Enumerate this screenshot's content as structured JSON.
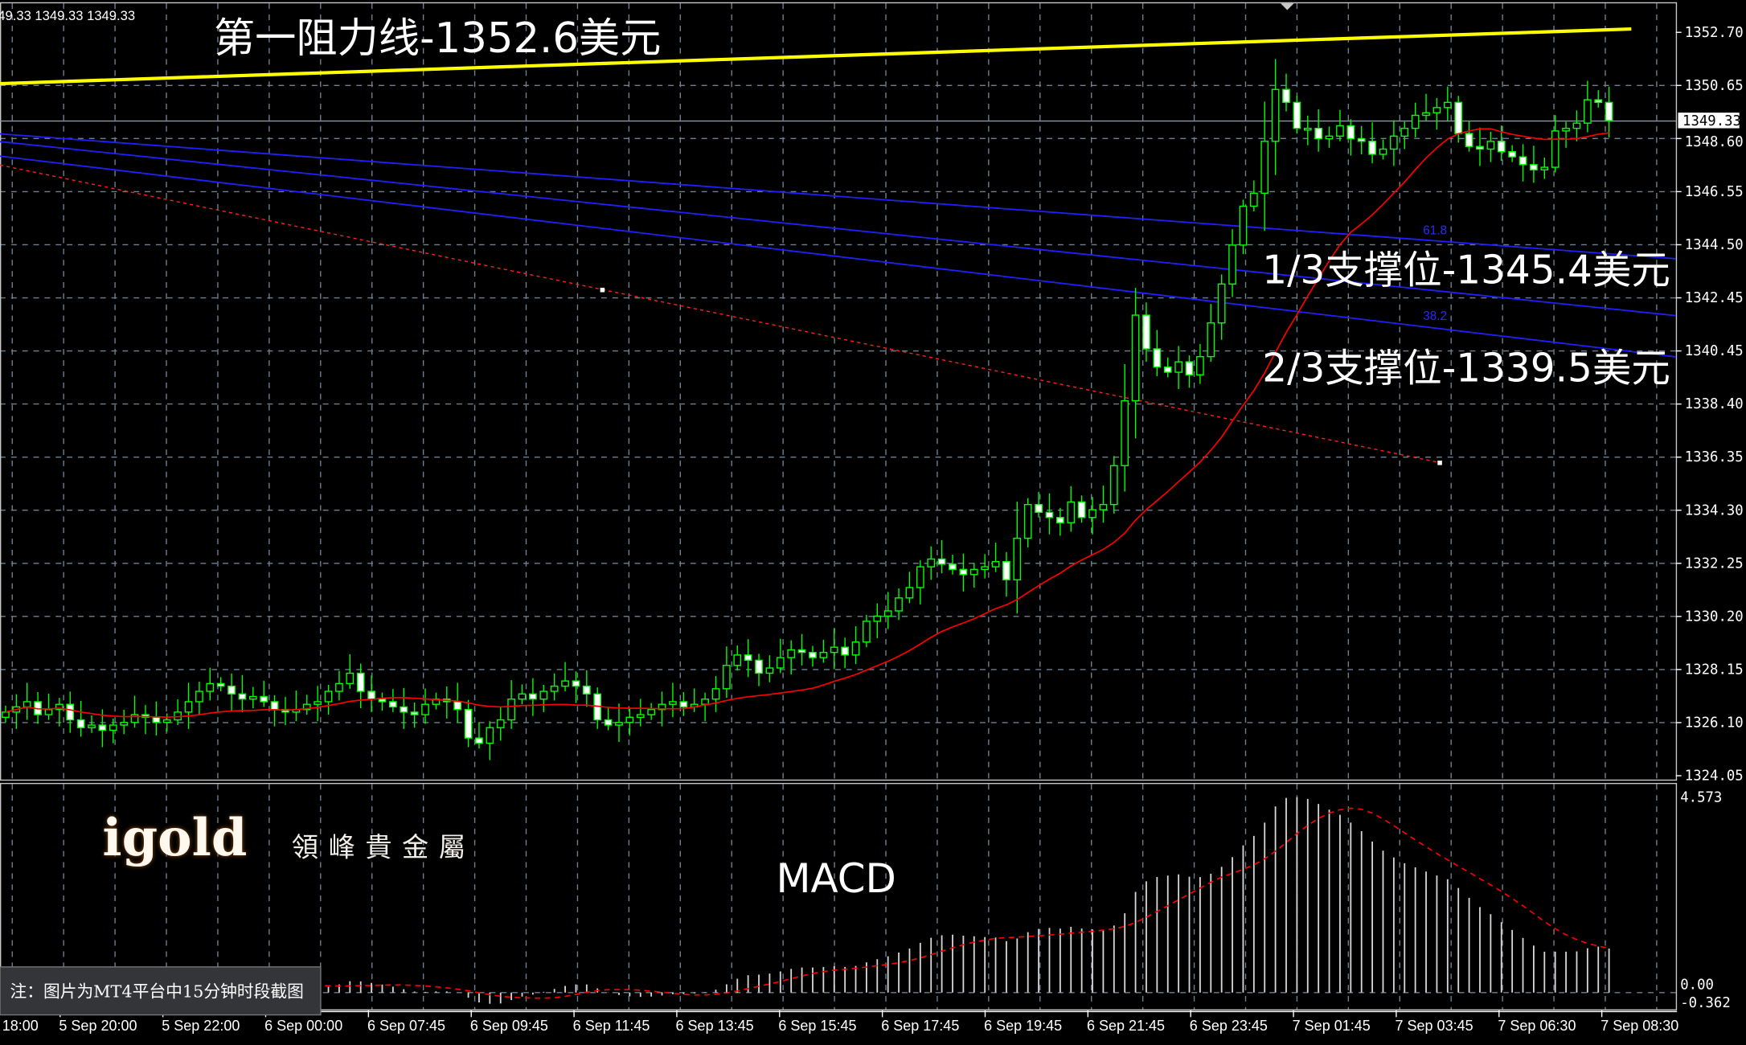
{
  "window": {
    "ohlc_readout": "49.33 1349.33 1349.33"
  },
  "annotations": {
    "resistance": "第一阻力线-1352.6美元",
    "support_1_3": "1/3支撑位-1345.4美元",
    "support_2_3": "2/3支撑位-1339.5美元",
    "macd_label": "MACD",
    "fib_618": "61.8",
    "fib_382": "38.2",
    "note": "注：图片为MT4平台中15分钟时段截图"
  },
  "logo": {
    "text": "igold",
    "subtitle": "領峰貴金屬"
  },
  "colors": {
    "background": "#000000",
    "candle": "#00ff00",
    "resistance": "#ffff00",
    "fib": "#0000ff",
    "ma": "#ff0000",
    "grid": "#7a8a9a"
  },
  "chart_data": {
    "type": "candlestick",
    "price_axis": {
      "labels": [
        "1352.70",
        "1350.65",
        "1348.60",
        "1346.55",
        "1344.50",
        "1342.45",
        "1340.45",
        "1338.40",
        "1336.35",
        "1334.30",
        "1332.25",
        "1330.20",
        "1328.15",
        "1326.10",
        "1324.05"
      ],
      "range": [
        1324.05,
        1352.7
      ]
    },
    "current_price": "1349.33",
    "time_axis": {
      "labels": [
        "18:00",
        "5 Sep 20:00",
        "5 Sep 22:00",
        "6 Sep 00:00",
        "6 Sep 07:45",
        "6 Sep 09:45",
        "6 Sep 11:45",
        "6 Sep 13:45",
        "6 Sep 15:45",
        "6 Sep 17:45",
        "6 Sep 19:45",
        "6 Sep 21:45",
        "6 Sep 23:45",
        "7 Sep 01:45",
        "7 Sep 03:45",
        "7 Sep 06:30",
        "7 Sep 08:30"
      ]
    },
    "closes": [
      1326.5,
      1326.7,
      1326.9,
      1326.4,
      1326.6,
      1326.8,
      1326.2,
      1325.9,
      1326.0,
      1325.8,
      1326.0,
      1326.1,
      1326.4,
      1326.3,
      1326.1,
      1326.2,
      1326.5,
      1326.9,
      1327.3,
      1327.6,
      1327.5,
      1327.2,
      1327.0,
      1327.1,
      1326.9,
      1326.6,
      1326.5,
      1326.6,
      1326.8,
      1326.9,
      1327.3,
      1327.6,
      1328.0,
      1327.3,
      1327.0,
      1326.9,
      1326.7,
      1326.5,
      1326.4,
      1326.8,
      1327.0,
      1326.9,
      1326.6,
      1325.5,
      1325.3,
      1325.9,
      1326.2,
      1327.0,
      1327.2,
      1327.0,
      1327.3,
      1327.5,
      1327.7,
      1327.5,
      1327.2,
      1326.2,
      1326.0,
      1326.1,
      1326.3,
      1326.4,
      1326.6,
      1326.8,
      1326.9,
      1326.7,
      1326.8,
      1327.0,
      1327.4,
      1328.3,
      1328.7,
      1328.5,
      1328.0,
      1328.2,
      1328.6,
      1328.9,
      1328.8,
      1328.6,
      1328.8,
      1329.0,
      1328.7,
      1329.2,
      1330.0,
      1330.2,
      1330.4,
      1330.9,
      1331.3,
      1332.1,
      1332.4,
      1332.2,
      1332.0,
      1331.8,
      1332.0,
      1332.1,
      1332.3,
      1331.6,
      1333.2,
      1334.5,
      1334.2,
      1334.0,
      1333.8,
      1334.6,
      1334.0,
      1334.3,
      1334.5,
      1336.0,
      1338.5,
      1341.8,
      1340.5,
      1339.8,
      1339.6,
      1340.0,
      1339.5,
      1340.2,
      1341.5,
      1343.0,
      1344.5,
      1346.0,
      1346.5,
      1348.5,
      1350.5,
      1350.0,
      1349.0,
      1349.0,
      1348.6,
      1348.7,
      1349.1,
      1348.6,
      1348.5,
      1348.0,
      1348.2,
      1348.7,
      1349.0,
      1349.5,
      1349.6,
      1349.8,
      1350.0,
      1348.8,
      1348.3,
      1348.2,
      1348.5,
      1348.1,
      1347.9,
      1347.6,
      1347.4,
      1347.5,
      1348.9,
      1349.0,
      1349.2,
      1350.1,
      1350.0,
      1349.3
    ],
    "macd_axis": {
      "labels": [
        "4.573",
        "0.00",
        "-0.362"
      ],
      "range": [
        -0.362,
        4.573
      ]
    }
  }
}
